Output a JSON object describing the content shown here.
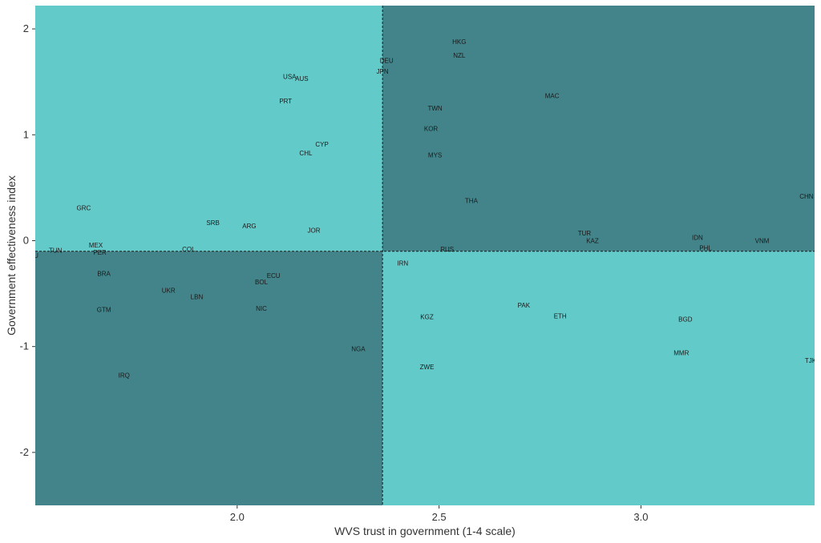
{
  "chart_data": {
    "type": "scatter",
    "title": "",
    "xlabel": "WVS trust in government (1-4 scale)",
    "ylabel": "Government effectiveness index",
    "xlim": [
      1.5,
      3.43
    ],
    "ylim": [
      -2.5,
      2.22
    ],
    "x_ticks": [
      2.0,
      2.5,
      3.0
    ],
    "x_tick_labels": [
      "2.0",
      "2.5",
      "3.0"
    ],
    "y_ticks": [
      -2,
      -1,
      0,
      1,
      2
    ],
    "y_tick_labels": [
      "-2",
      "-1",
      "0",
      "1",
      "2"
    ],
    "grid": false,
    "legend": "none",
    "reference_lines": {
      "x": 2.36,
      "y": -0.1
    },
    "quadrant_colors": {
      "light": "#62cbca",
      "dark": "#42848a"
    },
    "points": [
      {
        "label": "HKG",
        "x": 2.55,
        "y": 1.88
      },
      {
        "label": "NZL",
        "x": 2.55,
        "y": 1.75
      },
      {
        "label": "DEU",
        "x": 2.37,
        "y": 1.7
      },
      {
        "label": "JPN",
        "x": 2.36,
        "y": 1.6
      },
      {
        "label": "USA",
        "x": 2.13,
        "y": 1.55
      },
      {
        "label": "AUS",
        "x": 2.16,
        "y": 1.53
      },
      {
        "label": "PRT",
        "x": 2.12,
        "y": 1.32
      },
      {
        "label": "MAC",
        "x": 2.78,
        "y": 1.37
      },
      {
        "label": "TWN",
        "x": 2.49,
        "y": 1.25
      },
      {
        "label": "KOR",
        "x": 2.48,
        "y": 1.06
      },
      {
        "label": "CYP",
        "x": 2.21,
        "y": 0.91
      },
      {
        "label": "CHL",
        "x": 2.17,
        "y": 0.83
      },
      {
        "label": "MYS",
        "x": 2.49,
        "y": 0.81
      },
      {
        "label": "THA",
        "x": 2.58,
        "y": 0.38
      },
      {
        "label": "CHN",
        "x": 3.41,
        "y": 0.42
      },
      {
        "label": "GRC",
        "x": 1.62,
        "y": 0.31
      },
      {
        "label": "SRB",
        "x": 1.94,
        "y": 0.17
      },
      {
        "label": "ARG",
        "x": 2.03,
        "y": 0.14
      },
      {
        "label": "JOR",
        "x": 2.19,
        "y": 0.1
      },
      {
        "label": "TUR",
        "x": 2.86,
        "y": 0.07
      },
      {
        "label": "IDN",
        "x": 3.14,
        "y": 0.03
      },
      {
        "label": "KAZ",
        "x": 2.88,
        "y": 0.0
      },
      {
        "label": "VNM",
        "x": 3.3,
        "y": 0.0
      },
      {
        "label": "MEX",
        "x": 1.65,
        "y": -0.04
      },
      {
        "label": "PHL",
        "x": 3.16,
        "y": -0.07
      },
      {
        "label": "TUN",
        "x": 1.55,
        "y": -0.09
      },
      {
        "label": "COL",
        "x": 1.88,
        "y": -0.08
      },
      {
        "label": "RUS",
        "x": 2.52,
        "y": -0.08
      },
      {
        "label": "PER",
        "x": 1.66,
        "y": -0.11
      },
      {
        "label": "ROU",
        "x": 1.49,
        "y": -0.14
      },
      {
        "label": "IRN",
        "x": 2.41,
        "y": -0.21
      },
      {
        "label": "BRA",
        "x": 1.67,
        "y": -0.31
      },
      {
        "label": "ECU",
        "x": 2.09,
        "y": -0.33
      },
      {
        "label": "BOL",
        "x": 2.06,
        "y": -0.39
      },
      {
        "label": "UKR",
        "x": 1.83,
        "y": -0.47
      },
      {
        "label": "LBN",
        "x": 1.9,
        "y": -0.53
      },
      {
        "label": "PAK",
        "x": 2.71,
        "y": -0.61
      },
      {
        "label": "GTM",
        "x": 1.67,
        "y": -0.65
      },
      {
        "label": "NIC",
        "x": 2.06,
        "y": -0.64
      },
      {
        "label": "ETH",
        "x": 2.8,
        "y": -0.71
      },
      {
        "label": "KGZ",
        "x": 2.47,
        "y": -0.72
      },
      {
        "label": "BGD",
        "x": 3.11,
        "y": -0.74
      },
      {
        "label": "NGA",
        "x": 2.3,
        "y": -1.02
      },
      {
        "label": "MMR",
        "x": 3.1,
        "y": -1.06
      },
      {
        "label": "TJK",
        "x": 3.42,
        "y": -1.13
      },
      {
        "label": "ZWE",
        "x": 2.47,
        "y": -1.19
      },
      {
        "label": "IRQ",
        "x": 1.72,
        "y": -1.27
      }
    ]
  }
}
